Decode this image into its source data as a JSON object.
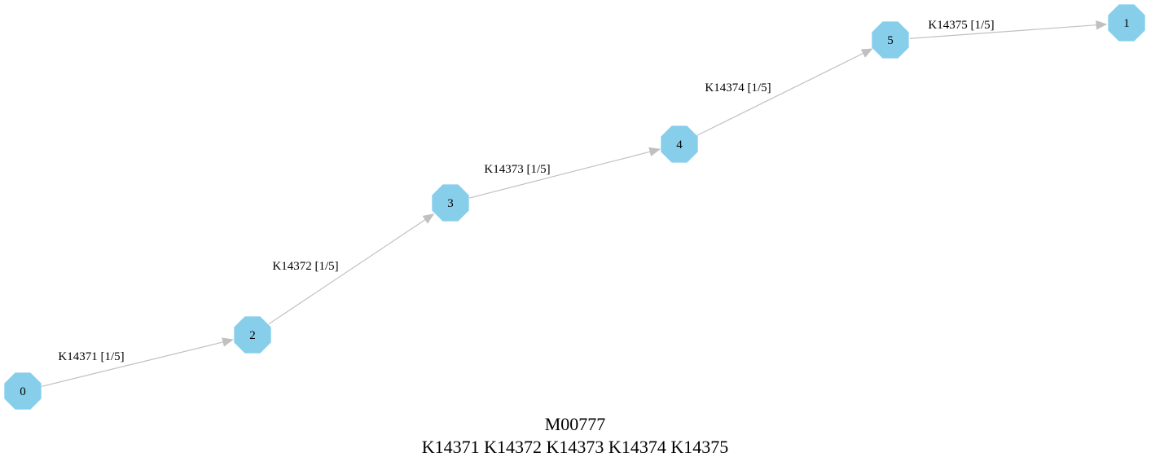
{
  "graph": {
    "nodes": [
      {
        "id": "0",
        "label": "0"
      },
      {
        "id": "2",
        "label": "2"
      },
      {
        "id": "3",
        "label": "3"
      },
      {
        "id": "4",
        "label": "4"
      },
      {
        "id": "5",
        "label": "5"
      },
      {
        "id": "1",
        "label": "1"
      }
    ],
    "edges": [
      {
        "from": "0",
        "to": "2",
        "label": "K14371 [1/5]"
      },
      {
        "from": "2",
        "to": "3",
        "label": "K14372 [1/5]"
      },
      {
        "from": "3",
        "to": "4",
        "label": "K14373 [1/5]"
      },
      {
        "from": "4",
        "to": "5",
        "label": "K14374 [1/5]"
      },
      {
        "from": "5",
        "to": "1",
        "label": "K14375 [1/5]"
      }
    ],
    "node_color": "#87ceeb",
    "edge_color": "#c0c0c0",
    "node_shape": "octagon-icon"
  },
  "caption": {
    "line1": "M00777",
    "line2": "K14371 K14372 K14373 K14374 K14375"
  }
}
